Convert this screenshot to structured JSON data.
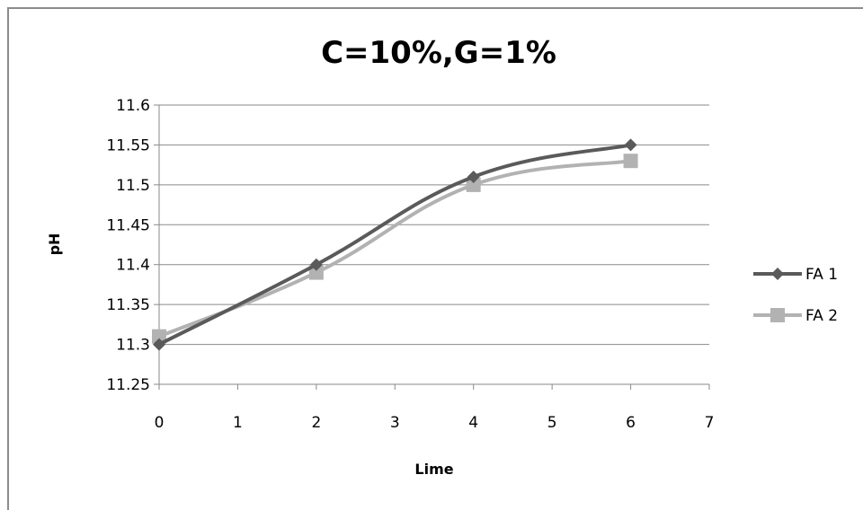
{
  "chart_data": {
    "type": "line",
    "title": "C=10%,G=1%",
    "xlabel": "Lime",
    "ylabel": "pH",
    "xlim": [
      0,
      7
    ],
    "ylim": [
      11.25,
      11.6
    ],
    "xticks": [
      "0",
      "1",
      "2",
      "3",
      "4",
      "5",
      "6",
      "7"
    ],
    "yticks": [
      "11.6",
      "11.55",
      "11.5",
      "11.45",
      "11.4",
      "11.35",
      "11.3",
      "11.25"
    ],
    "grid": "horizontal",
    "legend_position": "right",
    "series": [
      {
        "name": "FA 1",
        "marker": "diamond",
        "color": "#5a5a5a",
        "x": [
          0,
          2,
          4,
          6
        ],
        "y": [
          11.3,
          11.4,
          11.51,
          11.55
        ]
      },
      {
        "name": "FA 2",
        "marker": "square",
        "color": "#b2b2b2",
        "x": [
          0,
          2,
          4,
          6
        ],
        "y": [
          11.31,
          11.39,
          11.5,
          11.53
        ]
      }
    ]
  }
}
